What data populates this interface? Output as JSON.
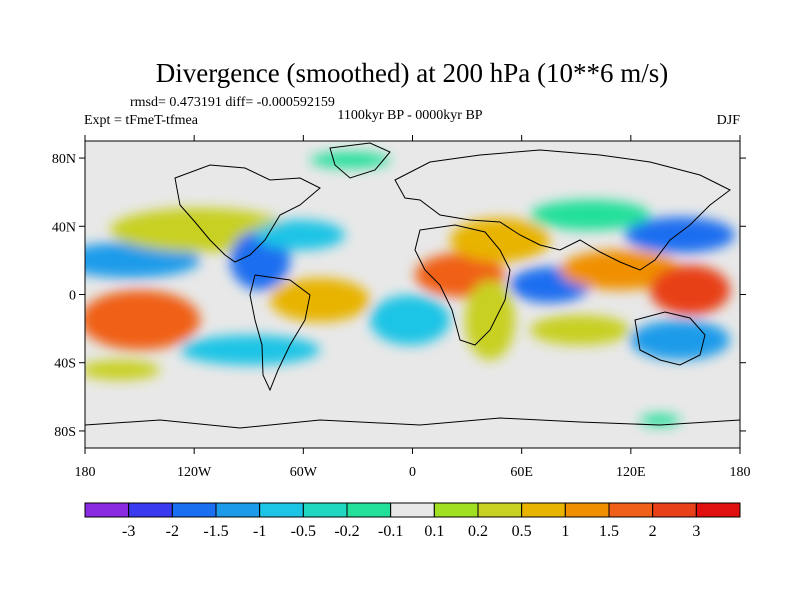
{
  "chart_data": {
    "type": "heatmap",
    "title": "Divergence (smoothed) at 200 hPa (10**6 m/s)",
    "stats": "rmsd= 0.473191 diff= -0.000592159",
    "left_label": "Expt = tFmeT-tfmea",
    "center_label": "1100kyr BP - 0000kyr BP",
    "right_label": "DJF",
    "x_ticks": [
      "180",
      "120W",
      "60W",
      "0",
      "60E",
      "120E",
      "180"
    ],
    "y_ticks": [
      "80N",
      "40N",
      "0",
      "40S",
      "80S"
    ],
    "xlim": [
      -180,
      180
    ],
    "ylim": [
      -90,
      90
    ],
    "colorbar": {
      "labels": [
        "-3",
        "-2",
        "-1.5",
        "-1",
        "-0.5",
        "-0.2",
        "-0.1",
        "0.1",
        "0.2",
        "0.5",
        "1",
        "1.5",
        "2",
        "3"
      ],
      "colors": [
        "#8a2be2",
        "#3a3af0",
        "#1a6ef0",
        "#1c9bea",
        "#1cc4e6",
        "#20d8c0",
        "#22e09a",
        "#e8e8e8",
        "#a0e020",
        "#c8d020",
        "#e8b400",
        "#f09000",
        "#f06018",
        "#e84018",
        "#e01010"
      ]
    },
    "features": [
      {
        "lon": -150,
        "lat": -15,
        "value": 2.0
      },
      {
        "lon": -120,
        "lat": 35,
        "value": 0.5
      },
      {
        "lon": -150,
        "lat": 10,
        "value": -0.5
      },
      {
        "lon": -90,
        "lat": 10,
        "value": -1.0
      },
      {
        "lon": -70,
        "lat": -5,
        "value": 1.5
      },
      {
        "lon": -60,
        "lat": 35,
        "value": -1.0
      },
      {
        "lon": -30,
        "lat": -10,
        "value": -0.5
      },
      {
        "lon": 10,
        "lat": 5,
        "value": 1.5
      },
      {
        "lon": 30,
        "lat": -15,
        "value": 0.5
      },
      {
        "lon": 40,
        "lat": 35,
        "value": 1.0
      },
      {
        "lon": 75,
        "lat": 5,
        "value": -1.5
      },
      {
        "lon": 110,
        "lat": 15,
        "value": 1.5
      },
      {
        "lon": 150,
        "lat": 0,
        "value": 2.0
      },
      {
        "lon": 150,
        "lat": 35,
        "value": -1.5
      },
      {
        "lon": 130,
        "lat": -25,
        "value": -0.5
      }
    ]
  }
}
